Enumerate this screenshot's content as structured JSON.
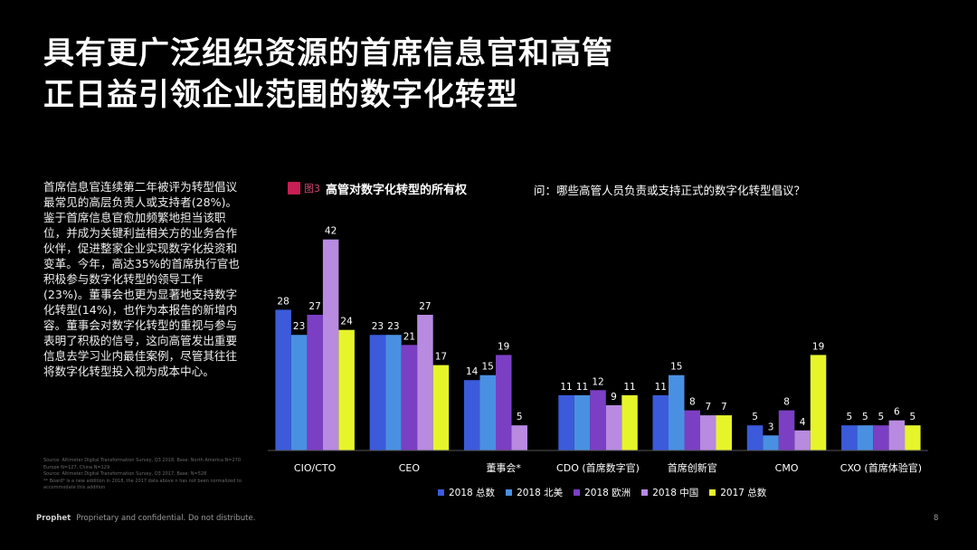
{
  "slide": {
    "title_line1": "具有更广泛组织资源的首席信息官和高管",
    "title_line2": "正日益引领企业范围的数字化转型",
    "body": "首席信息官连续第二年被评为转型倡议最常见的高层负责人或支持者(28%)。鉴于首席信息官愈加频繁地担当该职位，并成为关键利益相关方的业务合作伙伴，促进整家企业实现数字化投资和变革。今年，高达35%的首席执行官也积极参与数字化转型的领导工作 (23%)。董事会也更为显著地支持数字化转型(14%)，也作为本报告的新增内容。董事会对数字化转型的重视与参与表明了积极的信号，这向高管发出重要信息去学习业内最佳案例，尽管其往往将数字化转型投入视为成本中心。",
    "sources": [
      "Source: Altimeter Digital Transformation Survey, Q3 2018, Base: North America N=270",
      "Europe N=127, China N=129",
      "Source: Altimeter Digital Transformation Survey, Q3 2017, Base: N=528",
      "** Board* is a new addition in 2018, the 2017 data above n has not been normalized to",
      "accommodate this addition"
    ],
    "footer_brand": "Prophet",
    "footer_text": "Proprietary and confidential. Do not distribute.",
    "page_number": "8"
  },
  "figure": {
    "number": "图3",
    "title": "高管对数字化转型的所有权",
    "question": "问：哪些高管人员负责或支持正式的数字化转型倡议？"
  },
  "colors": {
    "background": "#000000",
    "figure_badge": "#c81e53",
    "series": [
      "#3b5bdb",
      "#4a90e2",
      "#7b3fc4",
      "#b88ae0",
      "#e6f52a"
    ]
  },
  "chart_data": {
    "type": "bar",
    "categories": [
      "CIO/CTO",
      "CEO",
      "董事会*",
      "CDO (首席数字官)",
      "首席创新官",
      "CMO",
      "CXO (首席体验官)"
    ],
    "series": [
      {
        "name": "2018 总数",
        "values": [
          28,
          23,
          14,
          11,
          11,
          5,
          5
        ]
      },
      {
        "name": "2018 北美",
        "values": [
          23,
          23,
          15,
          11,
          15,
          3,
          5
        ]
      },
      {
        "name": "2018 欧洲",
        "values": [
          27,
          21,
          19,
          12,
          8,
          8,
          5
        ]
      },
      {
        "name": "2018 中国",
        "values": [
          42,
          27,
          5,
          9,
          7,
          4,
          6
        ]
      },
      {
        "name": "2017 总数",
        "values": [
          24,
          17,
          null,
          11,
          7,
          19,
          5
        ]
      }
    ],
    "ylim": [
      0,
      45
    ],
    "grid": false,
    "legend_position": "bottom",
    "data_labels": true
  }
}
